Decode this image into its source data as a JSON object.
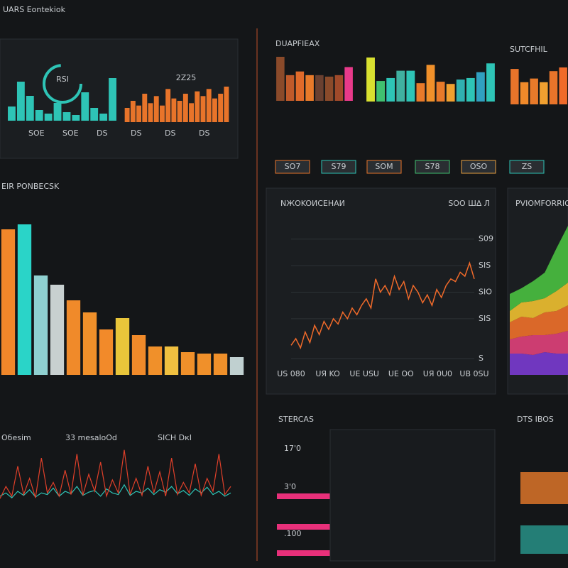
{
  "header": {
    "title": "UARS Eontekiok"
  },
  "panels": {
    "gauge_label": "RSI",
    "gauge_value": "2Z25",
    "small_left_labels": [
      "SOE",
      "SOE",
      "DS",
      "DS",
      "DS",
      "DS"
    ],
    "dashboard_a": "DUAPFIEAX",
    "dashboard_b": "SUTCFHIL",
    "chips": [
      "SO7",
      "S79",
      "SOM",
      "S78",
      "OSO",
      "ZS"
    ],
    "big_title": "EIR PONBECSK",
    "bottom_left": [
      "Oбеsim",
      "33 mesaloOd",
      "SICH DкI"
    ],
    "stats_title": "STERCAS",
    "stats": [
      "17'0",
      "3'0",
      ".100"
    ],
    "right_title": "DTS IBOS"
  },
  "chart_data": [
    {
      "type": "bar",
      "color": "#2ec4b6",
      "values": [
        20,
        55,
        35,
        15,
        10,
        25,
        12,
        8,
        40,
        18,
        10,
        60
      ]
    },
    {
      "type": "bar",
      "color": "#e8742a",
      "values": [
        30,
        45,
        35,
        60,
        40,
        55,
        35,
        70,
        50,
        45,
        60,
        40,
        65,
        55,
        70,
        50,
        60,
        75
      ]
    },
    {
      "type": "bar",
      "colors": [
        "#8a4a2a",
        "#c05a2a",
        "#e06a2a",
        "#e87a2a",
        "#6a4030",
        "#8a4a2a",
        "#a04a2a",
        "#e83a8a"
      ],
      "values": [
        60,
        35,
        40,
        35,
        35,
        33,
        35,
        46
      ]
    },
    {
      "type": "bar",
      "colors": [
        "#d8e030",
        "#40c070",
        "#2ec4b6",
        "#40b0a0",
        "#2ec4b6",
        "#e87a2a",
        "#f0902a",
        "#e87a2a",
        "#f0a030",
        "#30b0b0",
        "#2ec4b6",
        "#30a0c0",
        "#2ec4b6"
      ],
      "values": [
        60,
        28,
        32,
        42,
        42,
        25,
        50,
        27,
        24,
        30,
        32,
        40,
        52
      ]
    },
    {
      "type": "bar",
      "colors": [
        "#e8742a",
        "#f08a2a",
        "#e87a2a",
        "#f0a030",
        "#e8742a",
        "#f06a2a"
      ],
      "values": [
        48,
        30,
        35,
        30,
        45,
        50
      ]
    },
    {
      "type": "bar",
      "colors": [
        "#f0872a",
        "#2ad4c8",
        "#8fd0d0",
        "#c8d0d0",
        "#f08a2a",
        "#f0902a",
        "#f28a2a",
        "#e8c53a",
        "#f08a2a",
        "#f0902a",
        "#f0c040",
        "#f0902a",
        "#f0902a",
        "#f0902a",
        "#c0d0d0"
      ],
      "values": [
        205,
        212,
        140,
        127,
        105,
        88,
        64,
        80,
        56,
        40,
        40,
        32,
        30,
        30,
        25
      ]
    },
    {
      "type": "line",
      "title": "NЖOKOИСЕНАИ",
      "subtitle": "SOO Ш∆ Л",
      "ylim": [
        0,
        100
      ],
      "yticks": [
        {
          "value": 90,
          "label": "S09"
        },
        {
          "value": 70,
          "label": "SIS"
        },
        {
          "value": 50,
          "label": "SIO"
        },
        {
          "value": 30,
          "label": "SIS"
        },
        {
          "value": 0,
          "label": "S"
        }
      ],
      "x_labels": [
        "US 080",
        "UЯ KO",
        "UE USU",
        "UE OO",
        "UЯ 0U0",
        "UB 0SU"
      ],
      "series": [
        {
          "color": "#f06a2a",
          "values": [
            10,
            15,
            8,
            20,
            12,
            25,
            18,
            28,
            22,
            30,
            26,
            35,
            30,
            38,
            33,
            40,
            45,
            38,
            60,
            50,
            55,
            48,
            62,
            52,
            58,
            45,
            55,
            50,
            42,
            48,
            40,
            52,
            46,
            55,
            60,
            58,
            65,
            62,
            72,
            60
          ]
        }
      ]
    },
    {
      "type": "area",
      "title": "PVIOMFORRIO",
      "series": [
        {
          "color": "#7a3ad0",
          "values": [
            15,
            15,
            14,
            16,
            15,
            15
          ]
        },
        {
          "color": "#e0407a",
          "values": [
            10,
            12,
            14,
            12,
            14,
            16
          ]
        },
        {
          "color": "#f0702a",
          "values": [
            12,
            14,
            12,
            16,
            16,
            18
          ]
        },
        {
          "color": "#f0c030",
          "values": [
            8,
            10,
            12,
            10,
            14,
            16
          ]
        },
        {
          "color": "#4ac040",
          "values": [
            12,
            10,
            14,
            18,
            30,
            40
          ]
        }
      ]
    },
    {
      "type": "line",
      "series": [
        {
          "color": "#2ec4b6",
          "values": [
            8,
            12,
            6,
            14,
            9,
            16,
            7,
            12,
            10,
            18,
            8,
            14,
            11,
            20,
            9,
            13,
            15,
            8,
            17,
            12,
            10,
            22,
            9,
            14,
            12,
            18,
            10,
            16,
            13,
            20,
            11,
            15,
            9,
            17,
            12,
            19,
            10,
            14,
            8,
            12
          ]
        },
        {
          "color": "#e0402a",
          "values": [
            5,
            20,
            8,
            45,
            10,
            30,
            6,
            55,
            12,
            25,
            8,
            40,
            10,
            60,
            9,
            35,
            14,
            50,
            8,
            28,
            12,
            65,
            10,
            30,
            9,
            45,
            12,
            38,
            8,
            55,
            10,
            25,
            12,
            48,
            9,
            30,
            14,
            60,
            10,
            20
          ]
        }
      ]
    }
  ]
}
